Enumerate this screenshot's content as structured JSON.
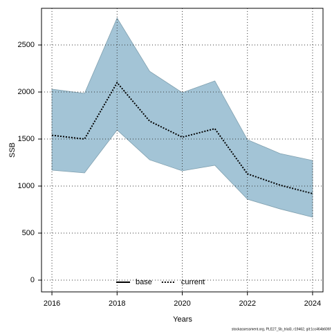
{
  "chart_data": {
    "type": "line-band",
    "x_label": "Years",
    "y_label": "SSB",
    "x": [
      2016,
      2017,
      2018,
      2019,
      2020,
      2021,
      2022,
      2023,
      2024
    ],
    "series": [
      {
        "name": "current",
        "color": "#000000",
        "dash": "dotted",
        "values": [
          1540,
          1500,
          2100,
          1690,
          1520,
          1610,
          1130,
          1010,
          920
        ]
      }
    ],
    "band": {
      "color": "#a3c4d6",
      "upper": [
        2030,
        1985,
        2787,
        2220,
        1993,
        2118,
        1493,
        1346,
        1272
      ],
      "lower": [
        1169,
        1140,
        1596,
        1279,
        1162,
        1221,
        860,
        757,
        669
      ]
    },
    "legend": [
      {
        "label": "base",
        "color": "#000000",
        "dash": "solid"
      },
      {
        "label": "current",
        "color": "#000000",
        "dash": "dotted"
      }
    ],
    "legend_position": "bottom",
    "xlim": [
      2015.68,
      2024.32
    ],
    "ylim": [
      -125,
      2890
    ],
    "xticks": [
      2016,
      2018,
      2020,
      2022,
      2024
    ],
    "yticks": [
      0,
      500,
      1000,
      1500,
      2000,
      2500
    ],
    "grid": true,
    "footnote": "stockassessment.org, PLE27_5b_trial3, r19462, git:1cc464b606f"
  }
}
